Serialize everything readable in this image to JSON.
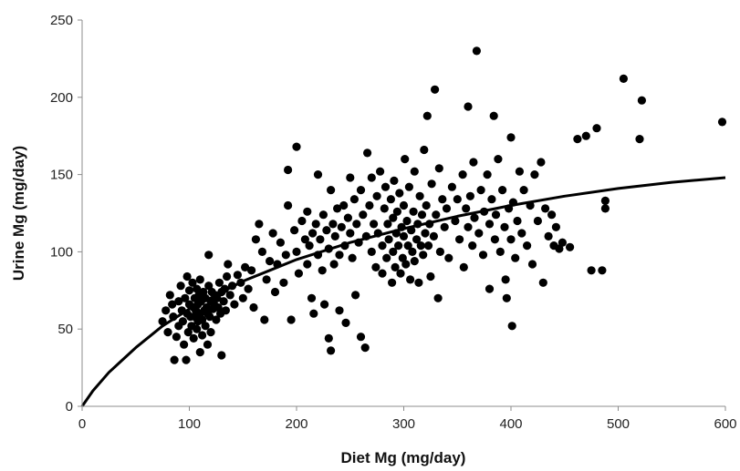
{
  "chart_data": {
    "type": "scatter",
    "title": "",
    "xlabel": "Diet Mg (mg/day)",
    "ylabel": "Urine Mg (mg/day)",
    "xlim": [
      0,
      600
    ],
    "ylim": [
      0,
      250
    ],
    "x_ticks": [
      0,
      100,
      200,
      300,
      400,
      500,
      600
    ],
    "y_ticks": [
      0,
      50,
      100,
      150,
      200,
      250
    ],
    "grid": false,
    "legend": "none",
    "colors": {
      "points": "#000000",
      "curve": "#000000"
    },
    "series": [
      {
        "type": "scatter",
        "points": [
          [
            75,
            55
          ],
          [
            78,
            62
          ],
          [
            80,
            48
          ],
          [
            82,
            72
          ],
          [
            84,
            66
          ],
          [
            85,
            58
          ],
          [
            86,
            30
          ],
          [
            88,
            45
          ],
          [
            90,
            52
          ],
          [
            90,
            68
          ],
          [
            92,
            78
          ],
          [
            93,
            62
          ],
          [
            94,
            55
          ],
          [
            95,
            40
          ],
          [
            96,
            70
          ],
          [
            97,
            30
          ],
          [
            98,
            60
          ],
          [
            98,
            84
          ],
          [
            99,
            48
          ],
          [
            100,
            66
          ],
          [
            100,
            75
          ],
          [
            101,
            58
          ],
          [
            102,
            52
          ],
          [
            103,
            80
          ],
          [
            104,
            64
          ],
          [
            104,
            44
          ],
          [
            105,
            70
          ],
          [
            105,
            58
          ],
          [
            106,
            62
          ],
          [
            107,
            76
          ],
          [
            107,
            50
          ],
          [
            108,
            66
          ],
          [
            108,
            55
          ],
          [
            109,
            72
          ],
          [
            110,
            60
          ],
          [
            110,
            35
          ],
          [
            110,
            82
          ],
          [
            111,
            68
          ],
          [
            112,
            56
          ],
          [
            112,
            46
          ],
          [
            113,
            74
          ],
          [
            114,
            62
          ],
          [
            115,
            70
          ],
          [
            115,
            52
          ],
          [
            116,
            64
          ],
          [
            117,
            60
          ],
          [
            117,
            40
          ],
          [
            118,
            78
          ],
          [
            118,
            98
          ],
          [
            119,
            58
          ],
          [
            120,
            68
          ],
          [
            120,
            48
          ],
          [
            121,
            74
          ],
          [
            122,
            63
          ],
          [
            123,
            66
          ],
          [
            124,
            72
          ],
          [
            125,
            56
          ],
          [
            126,
            70
          ],
          [
            127,
            64
          ],
          [
            128,
            80
          ],
          [
            129,
            60
          ],
          [
            130,
            74
          ],
          [
            130,
            33
          ],
          [
            132,
            68
          ],
          [
            133,
            76
          ],
          [
            134,
            62
          ],
          [
            135,
            84
          ],
          [
            136,
            92
          ],
          [
            138,
            72
          ],
          [
            140,
            78
          ],
          [
            142,
            66
          ],
          [
            145,
            85
          ],
          [
            148,
            80
          ],
          [
            150,
            70
          ],
          [
            152,
            90
          ],
          [
            155,
            76
          ],
          [
            158,
            88
          ],
          [
            160,
            64
          ],
          [
            162,
            108
          ],
          [
            165,
            118
          ],
          [
            168,
            100
          ],
          [
            170,
            56
          ],
          [
            172,
            82
          ],
          [
            175,
            94
          ],
          [
            178,
            112
          ],
          [
            180,
            74
          ],
          [
            182,
            92
          ],
          [
            185,
            106
          ],
          [
            188,
            80
          ],
          [
            190,
            98
          ],
          [
            192,
            130
          ],
          [
            192,
            153
          ],
          [
            195,
            56
          ],
          [
            198,
            114
          ],
          [
            200,
            168
          ],
          [
            200,
            100
          ],
          [
            202,
            86
          ],
          [
            205,
            120
          ],
          [
            208,
            108
          ],
          [
            210,
            92
          ],
          [
            210,
            126
          ],
          [
            212,
            104
          ],
          [
            214,
            70
          ],
          [
            215,
            112
          ],
          [
            216,
            60
          ],
          [
            218,
            118
          ],
          [
            220,
            98
          ],
          [
            220,
            150
          ],
          [
            222,
            108
          ],
          [
            224,
            88
          ],
          [
            225,
            124
          ],
          [
            226,
            66
          ],
          [
            228,
            114
          ],
          [
            230,
            102
          ],
          [
            230,
            44
          ],
          [
            232,
            36
          ],
          [
            232,
            140
          ],
          [
            234,
            118
          ],
          [
            235,
            92
          ],
          [
            236,
            110
          ],
          [
            238,
            128
          ],
          [
            240,
            98
          ],
          [
            240,
            62
          ],
          [
            242,
            116
          ],
          [
            244,
            130
          ],
          [
            245,
            104
          ],
          [
            246,
            54
          ],
          [
            248,
            122
          ],
          [
            250,
            112
          ],
          [
            250,
            148
          ],
          [
            252,
            96
          ],
          [
            254,
            134
          ],
          [
            255,
            72
          ],
          [
            256,
            118
          ],
          [
            258,
            106
          ],
          [
            260,
            140
          ],
          [
            260,
            45
          ],
          [
            262,
            124
          ],
          [
            264,
            38
          ],
          [
            265,
            110
          ],
          [
            266,
            164
          ],
          [
            268,
            130
          ],
          [
            270,
            100
          ],
          [
            270,
            148
          ],
          [
            272,
            118
          ],
          [
            274,
            90
          ],
          [
            275,
            136
          ],
          [
            276,
            112
          ],
          [
            278,
            152
          ],
          [
            280,
            104
          ],
          [
            280,
            86
          ],
          [
            282,
            128
          ],
          [
            283,
            142
          ],
          [
            284,
            96
          ],
          [
            285,
            118
          ],
          [
            286,
            108
          ],
          [
            288,
            134
          ],
          [
            289,
            80
          ],
          [
            290,
            122
          ],
          [
            290,
            100
          ],
          [
            291,
            146
          ],
          [
            292,
            90
          ],
          [
            293,
            112
          ],
          [
            294,
            126
          ],
          [
            295,
            104
          ],
          [
            296,
            138
          ],
          [
            297,
            86
          ],
          [
            298,
            116
          ],
          [
            299,
            96
          ],
          [
            300,
            130
          ],
          [
            300,
            110
          ],
          [
            301,
            160
          ],
          [
            302,
            92
          ],
          [
            303,
            120
          ],
          [
            304,
            104
          ],
          [
            305,
            142
          ],
          [
            306,
            82
          ],
          [
            307,
            114
          ],
          [
            308,
            100
          ],
          [
            309,
            126
          ],
          [
            310,
            94
          ],
          [
            310,
            152
          ],
          [
            312,
            108
          ],
          [
            313,
            118
          ],
          [
            314,
            80
          ],
          [
            315,
            136
          ],
          [
            316,
            104
          ],
          [
            317,
            124
          ],
          [
            318,
            98
          ],
          [
            319,
            166
          ],
          [
            320,
            112
          ],
          [
            321,
            130
          ],
          [
            322,
            188
          ],
          [
            323,
            104
          ],
          [
            324,
            118
          ],
          [
            325,
            84
          ],
          [
            326,
            144
          ],
          [
            328,
            110
          ],
          [
            329,
            205
          ],
          [
            330,
            124
          ],
          [
            332,
            70
          ],
          [
            333,
            154
          ],
          [
            334,
            100
          ],
          [
            336,
            134
          ],
          [
            338,
            116
          ],
          [
            340,
            128
          ],
          [
            342,
            96
          ],
          [
            345,
            142
          ],
          [
            348,
            120
          ],
          [
            350,
            134
          ],
          [
            352,
            108
          ],
          [
            355,
            150
          ],
          [
            356,
            90
          ],
          [
            358,
            128
          ],
          [
            360,
            194
          ],
          [
            360,
            116
          ],
          [
            362,
            136
          ],
          [
            364,
            104
          ],
          [
            365,
            158
          ],
          [
            366,
            122
          ],
          [
            368,
            230
          ],
          [
            370,
            112
          ],
          [
            372,
            140
          ],
          [
            374,
            98
          ],
          [
            375,
            126
          ],
          [
            378,
            150
          ],
          [
            380,
            118
          ],
          [
            380,
            76
          ],
          [
            382,
            134
          ],
          [
            384,
            188
          ],
          [
            385,
            108
          ],
          [
            386,
            124
          ],
          [
            388,
            160
          ],
          [
            390,
            100
          ],
          [
            392,
            140
          ],
          [
            394,
            116
          ],
          [
            395,
            82
          ],
          [
            396,
            70
          ],
          [
            398,
            128
          ],
          [
            400,
            174
          ],
          [
            400,
            108
          ],
          [
            401,
            52
          ],
          [
            402,
            132
          ],
          [
            404,
            96
          ],
          [
            406,
            120
          ],
          [
            408,
            152
          ],
          [
            410,
            112
          ],
          [
            412,
            140
          ],
          [
            415,
            104
          ],
          [
            418,
            130
          ],
          [
            420,
            92
          ],
          [
            422,
            150
          ],
          [
            425,
            120
          ],
          [
            428,
            158
          ],
          [
            430,
            80
          ],
          [
            432,
            128
          ],
          [
            435,
            110
          ],
          [
            438,
            124
          ],
          [
            440,
            104
          ],
          [
            442,
            116
          ],
          [
            445,
            102
          ],
          [
            448,
            106
          ],
          [
            455,
            103
          ],
          [
            462,
            173
          ],
          [
            470,
            175
          ],
          [
            475,
            88
          ],
          [
            480,
            180
          ],
          [
            485,
            88
          ],
          [
            488,
            133
          ],
          [
            488,
            128
          ],
          [
            505,
            212
          ],
          [
            520,
            173
          ],
          [
            522,
            198
          ],
          [
            597,
            184
          ]
        ]
      },
      {
        "type": "line",
        "points": [
          [
            0,
            0
          ],
          [
            10,
            10
          ],
          [
            25,
            22
          ],
          [
            50,
            38
          ],
          [
            75,
            52
          ],
          [
            100,
            63
          ],
          [
            125,
            72
          ],
          [
            150,
            81
          ],
          [
            175,
            88
          ],
          [
            200,
            95
          ],
          [
            250,
            106
          ],
          [
            300,
            115
          ],
          [
            350,
            123
          ],
          [
            400,
            130
          ],
          [
            450,
            136
          ],
          [
            500,
            141
          ],
          [
            550,
            145
          ],
          [
            600,
            148
          ]
        ]
      }
    ]
  }
}
